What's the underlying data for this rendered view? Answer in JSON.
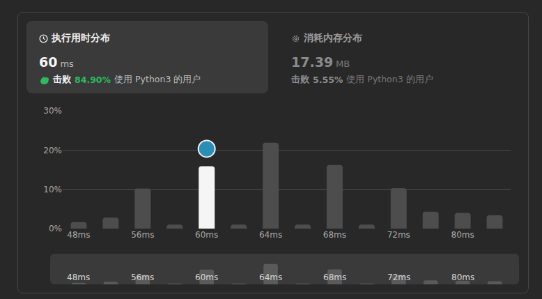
{
  "panels": [
    {
      "title": "执行用时分布",
      "value": "60",
      "unit": "ms",
      "beats_label": "击败",
      "beats": "84.90%",
      "beats_suffix": "使用 Python3 的用户"
    },
    {
      "title": "消耗内存分布",
      "value": "17.39",
      "unit": "MB",
      "beats_label": "击败",
      "beats": "5.55%",
      "beats_suffix": "使用 Python3 的用户"
    }
  ],
  "chart_data": {
    "type": "bar",
    "categories": [
      "48ms",
      null,
      "56ms",
      null,
      "60ms",
      null,
      "64ms",
      null,
      "68ms",
      null,
      "72ms",
      null,
      "80ms",
      null
    ],
    "values": [
      1.7,
      2.8,
      10.2,
      1,
      15.9,
      1,
      21.9,
      1,
      16.2,
      1,
      10.3,
      4.3,
      4,
      3.4
    ],
    "colors": [
      "#4d4d4d",
      "#4d4d4d",
      "#4d4d4d",
      "#4d4d4d",
      "#f5f5f5",
      "#4d4d4d",
      "#4d4d4d",
      "#4d4d4d",
      "#4d4d4d",
      "#4d4d4d",
      "#4d4d4d",
      "#4d4d4d",
      "#4d4d4d",
      "#4d4d4d"
    ],
    "ylim": [
      0,
      30
    ],
    "yticks": [
      {
        "value": 0,
        "label": "0%"
      },
      {
        "value": 10,
        "label": "10%"
      },
      {
        "value": 20,
        "label": "20%"
      },
      {
        "value": 30,
        "label": "30%"
      }
    ],
    "grid": true
  }
}
